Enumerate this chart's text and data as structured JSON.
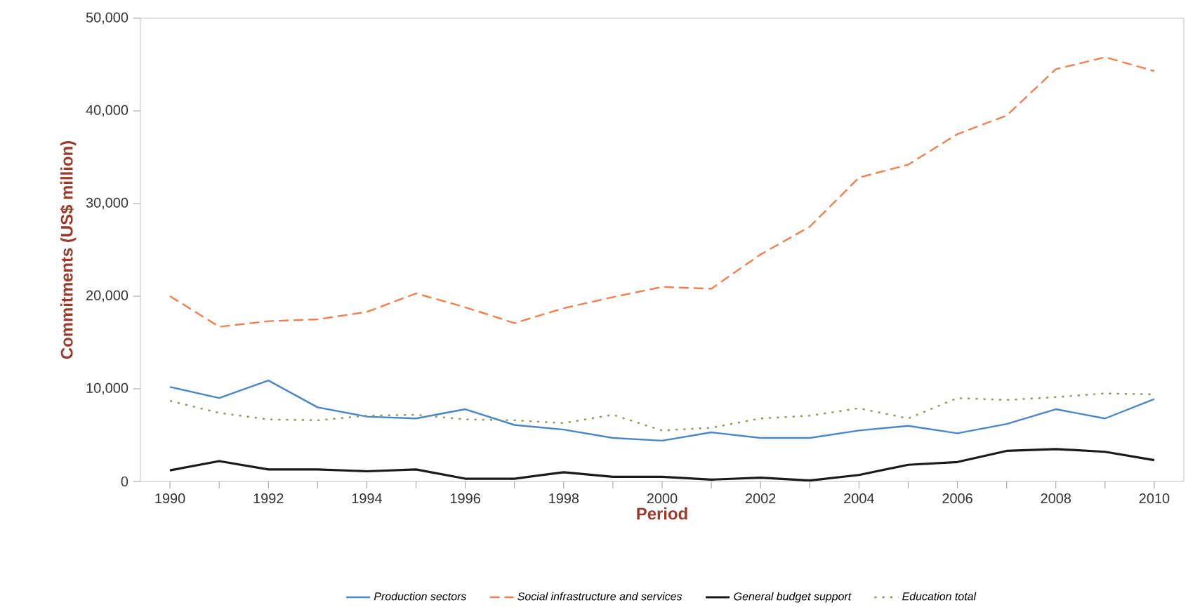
{
  "chart_data": {
    "type": "line",
    "xlabel": "Period",
    "ylabel": "Commitments (US$ million)",
    "x": [
      1990,
      1991,
      1992,
      1993,
      1994,
      1995,
      1996,
      1997,
      1998,
      1999,
      2000,
      2001,
      2002,
      2003,
      2004,
      2005,
      2006,
      2007,
      2008,
      2009,
      2010
    ],
    "series": [
      {
        "name": "Production sectors",
        "color": "#4a86c5",
        "line_style": "solid",
        "values": [
          10200,
          9000,
          10900,
          8000,
          7000,
          6800,
          7800,
          6100,
          5600,
          4700,
          4400,
          5300,
          4700,
          4700,
          5500,
          6000,
          5200,
          6200,
          7800,
          6800,
          8900
        ]
      },
      {
        "name": "Social infrastructure and services",
        "color": "#f0804f",
        "line_style": "dashed",
        "values": [
          20000,
          16700,
          17300,
          17500,
          18300,
          20300,
          18800,
          17100,
          18700,
          19900,
          21000,
          20800,
          24500,
          27500,
          32800,
          34200,
          37500,
          39500,
          44500,
          45800,
          44300
        ]
      },
      {
        "name": "General budget support",
        "color": "#1a1a1a",
        "line_style": "solid",
        "values": [
          1200,
          2200,
          1300,
          1300,
          1100,
          1300,
          300,
          300,
          1000,
          500,
          500,
          200,
          400,
          100,
          700,
          1800,
          2100,
          3300,
          3500,
          3200,
          2300
        ]
      },
      {
        "name": "Education total",
        "color": "#8a9a5b",
        "line_style": "dotted",
        "values": [
          8700,
          7400,
          6700,
          6600,
          7100,
          7200,
          6700,
          6600,
          6300,
          7200,
          5500,
          5800,
          6800,
          7100,
          7900,
          6800,
          9000,
          8800,
          9100,
          9500,
          9400
        ]
      }
    ],
    "xlim": [
      1989.4,
      2010.6
    ],
    "ylim": [
      0,
      50000
    ],
    "xticks": [
      1990,
      {
        "value": 1991,
        "label": null
      },
      1992,
      {
        "value": 1993,
        "label": null
      },
      1994,
      {
        "value": 1995,
        "label": null
      },
      1996,
      {
        "value": 1997,
        "label": null
      },
      1998,
      {
        "value": 1999,
        "label": null
      },
      2000,
      {
        "value": 2001,
        "label": null
      },
      2002,
      {
        "value": 2003,
        "label": null
      },
      2004,
      {
        "value": 2005,
        "label": null
      },
      2006,
      {
        "value": 2007,
        "label": null
      },
      2008,
      {
        "value": 2009,
        "label": null
      },
      2010
    ],
    "yticks": [
      0,
      {
        "value": 10000,
        "label": "10,000"
      },
      {
        "value": 20000,
        "label": "20,000"
      },
      {
        "value": 30000,
        "label": "30,000"
      },
      {
        "value": 40000,
        "label": "40,000"
      },
      {
        "value": 50000,
        "label": "50,000"
      }
    ],
    "grid": false,
    "legend": "bottom",
    "marker": "none"
  }
}
